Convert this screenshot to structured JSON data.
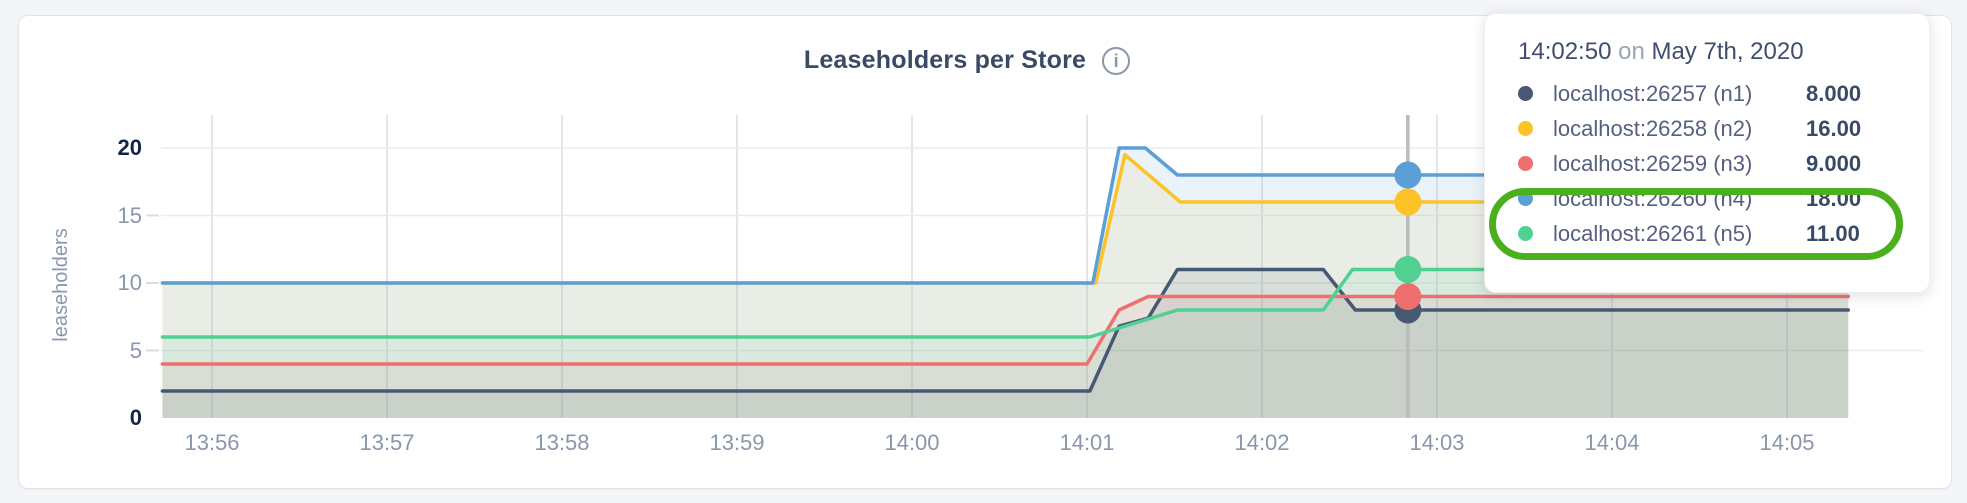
{
  "page": {
    "background": "#f3f5f9",
    "card_background": "#ffffff"
  },
  "chart_data": {
    "type": "area",
    "title": "Leaseholders per Store",
    "ylabel": "leaseholders",
    "xlabel": "",
    "ylim": [
      0,
      20
    ],
    "y_ticks": [
      0,
      5,
      10,
      15,
      20
    ],
    "y_ticks_bold": [
      0,
      20
    ],
    "x_ticks": [
      "13:56",
      "13:57",
      "13:58",
      "13:59",
      "14:00",
      "14:01",
      "14:02",
      "14:03",
      "14:04",
      "14:05"
    ],
    "grid": true,
    "legend_position": "tooltip-top-right",
    "hover": {
      "time": "14:02:50",
      "on_word": "on",
      "date": "May 7th, 2020"
    },
    "series": [
      {
        "id": "n1",
        "name": "localhost:26257 (n1)",
        "color": "#475872",
        "fill_opacity": 0.12,
        "hover_value": 8,
        "value_label": "8.000",
        "highlighted": false,
        "points": [
          [
            "13:55:43",
            2
          ],
          [
            "14:01:01",
            2
          ],
          [
            "14:01:11",
            6.8
          ],
          [
            "14:01:21",
            7.4
          ],
          [
            "14:01:31",
            11
          ],
          [
            "14:02:21",
            11
          ],
          [
            "14:02:32",
            8
          ],
          [
            "14:05:21",
            8
          ]
        ]
      },
      {
        "id": "n2",
        "name": "localhost:26258 (n2)",
        "color": "#fcc329",
        "fill_opacity": 0.1,
        "hover_value": 16,
        "value_label": "16.00",
        "highlighted": false,
        "points": [
          [
            "13:55:43",
            10
          ],
          [
            "14:01:03",
            10
          ],
          [
            "14:01:13",
            19.5
          ],
          [
            "14:01:32",
            16
          ],
          [
            "14:05:21",
            16
          ]
        ]
      },
      {
        "id": "n3",
        "name": "localhost:26259 (n3)",
        "color": "#ef6f6f",
        "fill_opacity": 0.1,
        "hover_value": 9,
        "value_label": "9.000",
        "highlighted": false,
        "points": [
          [
            "13:55:43",
            4
          ],
          [
            "14:01:00",
            4
          ],
          [
            "14:01:11",
            8
          ],
          [
            "14:01:21",
            9
          ],
          [
            "14:05:21",
            9
          ]
        ]
      },
      {
        "id": "n4",
        "name": "localhost:26260 (n4)",
        "color": "#5b9fd6",
        "fill_opacity": 0.13,
        "hover_value": 18,
        "value_label": "18.00",
        "highlighted": true,
        "points": [
          [
            "13:55:43",
            10
          ],
          [
            "14:01:02",
            10
          ],
          [
            "14:01:11",
            20
          ],
          [
            "14:01:20",
            20
          ],
          [
            "14:01:31",
            18
          ],
          [
            "14:05:21",
            18
          ]
        ]
      },
      {
        "id": "n5",
        "name": "localhost:26261 (n5)",
        "color": "#50d092",
        "fill_opacity": 0.1,
        "hover_value": 11,
        "value_label": "11.00",
        "highlighted": true,
        "points": [
          [
            "13:55:43",
            6
          ],
          [
            "14:01:01",
            6
          ],
          [
            "14:01:16",
            7
          ],
          [
            "14:01:31",
            8
          ],
          [
            "14:02:21",
            8
          ],
          [
            "14:02:31",
            11
          ],
          [
            "14:05:21",
            11
          ]
        ]
      }
    ],
    "annotation": {
      "shape": "green-rounded-circle",
      "color": "#4caf1d",
      "around_series": [
        "n4",
        "n5"
      ]
    }
  }
}
